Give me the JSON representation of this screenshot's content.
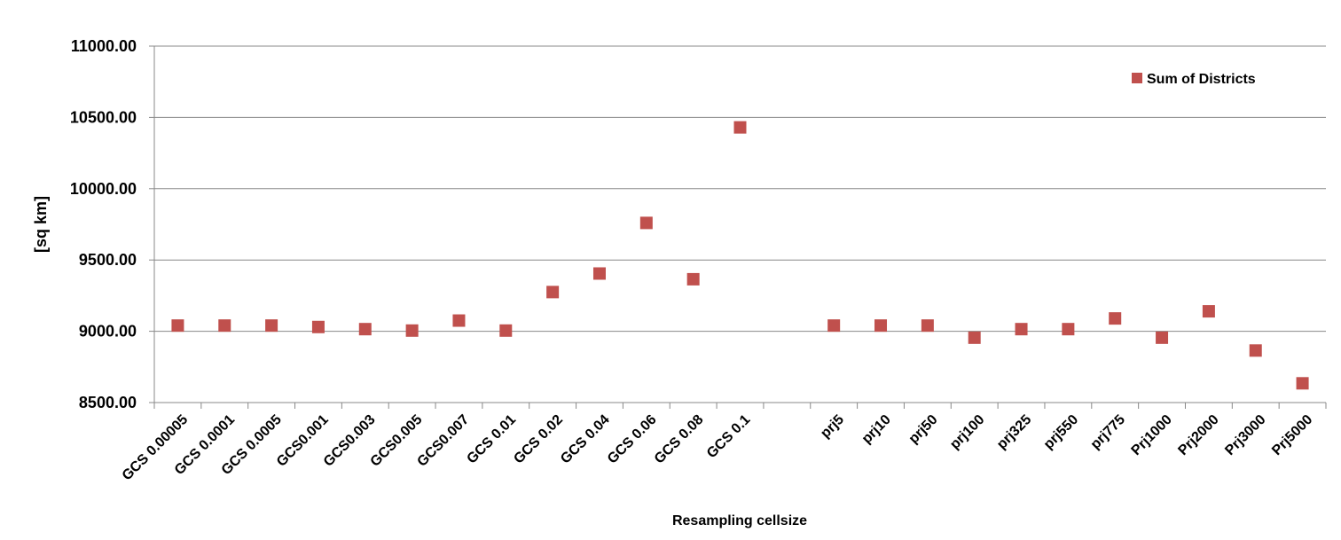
{
  "chart_data": {
    "type": "scatter",
    "x_label": "Resampling cellsize",
    "y_label": "[sq km]",
    "categories": [
      "GCS 0.00005",
      "GCS 0.0001",
      "GCS 0.0005",
      "GCS0.001",
      "GCS0.003",
      "GCS0.005",
      "GCS0.007",
      "GCS 0.01",
      "GCS 0.02",
      "GCS 0.04",
      "GCS 0.06",
      "GCS 0.08",
      "GCS 0.1",
      null,
      "prj5",
      "prj10",
      "prj50",
      "prj100",
      "prj325",
      "prj550",
      "prj775",
      "Prj1000",
      "Prj2000",
      "Prj3000",
      "Prj5000"
    ],
    "series": [
      {
        "name": "Sum of Districts",
        "color": "#c0504d",
        "values": [
          9040,
          9040,
          9040,
          9030,
          9015,
          9005,
          9075,
          9005,
          9275,
          9405,
          9760,
          9365,
          10430,
          null,
          9040,
          9040,
          9040,
          8955,
          9015,
          9015,
          9090,
          8955,
          9140,
          8865,
          8635
        ]
      }
    ],
    "ylim": [
      8500,
      11000
    ],
    "yticks": [
      {
        "value": 8500,
        "label": "8500.00"
      },
      {
        "value": 9000,
        "label": "9000.00"
      },
      {
        "value": 9500,
        "label": "9500.00"
      },
      {
        "value": 10000,
        "label": "10000.00"
      },
      {
        "value": 10500,
        "label": "10500.00"
      },
      {
        "value": 11000,
        "label": "11000.00"
      }
    ],
    "grid": true,
    "legend": "upper right"
  }
}
